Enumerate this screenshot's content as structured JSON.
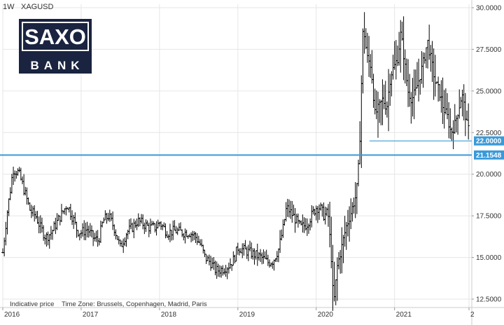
{
  "header": {
    "timeframe": "1W",
    "symbol": "XAGUSD"
  },
  "logo": {
    "line1": "SAXO",
    "line2": "BANK"
  },
  "footer": {
    "indicative": "Indicative price",
    "timezone": "Time Zone: Brussels, Copenhagen, Madrid, Paris"
  },
  "colors": {
    "line": "#3a9ad9",
    "tag_bg": "#3a9ad9",
    "bars": "#000000",
    "logo_bg": "#1a2440"
  },
  "chart_data": {
    "type": "ohlc",
    "timeframe": "weekly",
    "y_axis_side": "right",
    "ylim": [
      10.6,
      30.2
    ],
    "xlim": [
      2016.0,
      2021.95
    ],
    "yticks": [
      "12.5000",
      "15.0000",
      "17.5000",
      "20.0000",
      "22.5000",
      "25.0000",
      "27.5000",
      "30.0000"
    ],
    "xticks": [
      "2016",
      "2017",
      "2018",
      "2019",
      "2020",
      "2021",
      "2"
    ],
    "price_tags": [
      "22.0000",
      "21.1548"
    ],
    "horizontal_lines": [
      {
        "y": 21.15,
        "from": 2016.0,
        "to": 2021.95
      },
      {
        "y": 22.0,
        "from": 2020.68,
        "to": 2021.95
      }
    ],
    "close_path": [
      [
        2016.0,
        15.3
      ],
      [
        2016.05,
        17.5
      ],
      [
        2016.1,
        19.2
      ],
      [
        2016.13,
        20.3
      ],
      [
        2016.2,
        20.1
      ],
      [
        2016.25,
        19.4
      ],
      [
        2016.3,
        18.6
      ],
      [
        2016.35,
        17.8
      ],
      [
        2016.42,
        17.5
      ],
      [
        2016.48,
        16.8
      ],
      [
        2016.55,
        16.2
      ],
      [
        2016.62,
        16.5
      ],
      [
        2016.7,
        17.2
      ],
      [
        2016.75,
        17.6
      ],
      [
        2016.82,
        18.2
      ],
      [
        2016.9,
        17.3
      ],
      [
        2016.95,
        16.6
      ],
      [
        2017.0,
        16.5
      ],
      [
        2017.08,
        16.7
      ],
      [
        2017.15,
        16.2
      ],
      [
        2017.22,
        16.0
      ],
      [
        2017.28,
        17.2
      ],
      [
        2017.35,
        17.5
      ],
      [
        2017.42,
        16.8
      ],
      [
        2017.5,
        15.6
      ],
      [
        2017.58,
        16.5
      ],
      [
        2017.65,
        16.8
      ],
      [
        2017.72,
        17.2
      ],
      [
        2017.8,
        17.0
      ],
      [
        2017.87,
        16.8
      ],
      [
        2017.95,
        16.8
      ],
      [
        2018.0,
        17.1
      ],
      [
        2018.1,
        16.5
      ],
      [
        2018.2,
        16.6
      ],
      [
        2018.3,
        16.5
      ],
      [
        2018.38,
        16.5
      ],
      [
        2018.45,
        16.3
      ],
      [
        2018.52,
        15.8
      ],
      [
        2018.58,
        15.0
      ],
      [
        2018.65,
        14.7
      ],
      [
        2018.72,
        14.2
      ],
      [
        2018.8,
        14.3
      ],
      [
        2018.88,
        14.5
      ],
      [
        2018.95,
        14.9
      ],
      [
        2019.0,
        15.6
      ],
      [
        2019.1,
        15.4
      ],
      [
        2019.2,
        15.2
      ],
      [
        2019.3,
        15.0
      ],
      [
        2019.38,
        14.7
      ],
      [
        2019.45,
        14.8
      ],
      [
        2019.52,
        15.5
      ],
      [
        2019.58,
        16.8
      ],
      [
        2019.62,
        18.0
      ],
      [
        2019.66,
        17.8
      ],
      [
        2019.72,
        17.4
      ],
      [
        2019.8,
        16.8
      ],
      [
        2019.88,
        17.0
      ],
      [
        2019.95,
        17.6
      ],
      [
        2020.0,
        18.0
      ],
      [
        2020.05,
        18.0
      ],
      [
        2020.1,
        17.5
      ],
      [
        2020.15,
        17.7
      ],
      [
        2020.2,
        14.5
      ],
      [
        2020.22,
        12.0
      ],
      [
        2020.27,
        14.5
      ],
      [
        2020.32,
        15.5
      ],
      [
        2020.38,
        16.8
      ],
      [
        2020.45,
        17.8
      ],
      [
        2020.5,
        18.6
      ],
      [
        2020.53,
        19.5
      ],
      [
        2020.56,
        22.5
      ],
      [
        2020.58,
        26.0
      ],
      [
        2020.6,
        29.0
      ],
      [
        2020.65,
        27.0
      ],
      [
        2020.7,
        26.5
      ],
      [
        2020.75,
        23.6
      ],
      [
        2020.8,
        24.0
      ],
      [
        2020.85,
        24.5
      ],
      [
        2020.9,
        24.0
      ],
      [
        2020.95,
        26.0
      ],
      [
        2021.0,
        26.5
      ],
      [
        2021.04,
        27.0
      ],
      [
        2021.08,
        28.5
      ],
      [
        2021.12,
        27.0
      ],
      [
        2021.17,
        25.0
      ],
      [
        2021.22,
        24.5
      ],
      [
        2021.27,
        25.0
      ],
      [
        2021.33,
        26.0
      ],
      [
        2021.38,
        27.0
      ],
      [
        2021.42,
        28.0
      ],
      [
        2021.48,
        26.5
      ],
      [
        2021.52,
        25.5
      ],
      [
        2021.57,
        25.0
      ],
      [
        2021.62,
        24.0
      ],
      [
        2021.67,
        23.5
      ],
      [
        2021.72,
        22.5
      ],
      [
        2021.77,
        23.0
      ],
      [
        2021.82,
        24.0
      ],
      [
        2021.86,
        24.8
      ],
      [
        2021.89,
        24.0
      ],
      [
        2021.92,
        23.0
      ],
      [
        2021.95,
        22.6
      ]
    ],
    "volatility_path": [
      [
        2016.0,
        0.45
      ],
      [
        2016.5,
        0.5
      ],
      [
        2017.0,
        0.5
      ],
      [
        2018.0,
        0.4
      ],
      [
        2019.0,
        0.45
      ],
      [
        2020.15,
        0.7
      ],
      [
        2020.2,
        1.6
      ],
      [
        2020.5,
        1.0
      ],
      [
        2020.6,
        1.9
      ],
      [
        2020.75,
        1.6
      ],
      [
        2021.0,
        1.5
      ],
      [
        2021.5,
        1.4
      ],
      [
        2021.95,
        1.1
      ]
    ]
  }
}
